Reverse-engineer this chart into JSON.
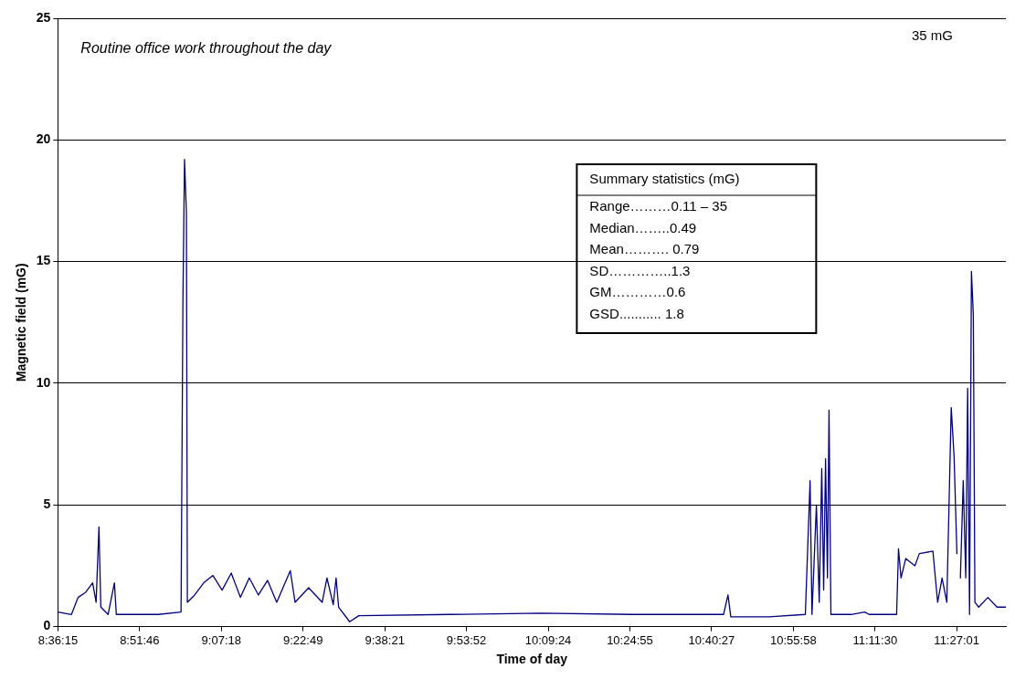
{
  "chart_data": {
    "type": "line",
    "xlabel": "Time of day",
    "ylabel": "Magnetic field (mG)",
    "annotations": [
      "Routine office work throughout the day",
      "35 mG",
      "Summary statistics (mG)",
      "Range………0.11 – 35",
      "Median……..0.49",
      "Mean………. 0.79",
      "SD…………..1.3",
      "GM…………0.6",
      "GSD........... 1.8"
    ],
    "xlim": [
      8.604,
      11.606
    ],
    "ylim": [
      0,
      25
    ],
    "yticks": [
      0,
      5,
      10,
      15,
      20,
      25
    ],
    "xticks": [
      {
        "value": 8.604167,
        "label": "8:36:15"
      },
      {
        "value": 8.862778,
        "label": "8:51:46"
      },
      {
        "value": 9.121667,
        "label": "9:07:18"
      },
      {
        "value": 9.380278,
        "label": "9:22:49"
      },
      {
        "value": 9.639167,
        "label": "9:38:21"
      },
      {
        "value": 9.897778,
        "label": "9:53:52"
      },
      {
        "value": 10.156667,
        "label": "10:09:24"
      },
      {
        "value": 10.415278,
        "label": "10:24:55"
      },
      {
        "value": 10.674167,
        "label": "10:40:27"
      },
      {
        "value": 10.932778,
        "label": "10:55:58"
      },
      {
        "value": 11.191667,
        "label": "11:11:30"
      },
      {
        "value": 11.450278,
        "label": "11:27:01"
      }
    ],
    "grid": "y",
    "legend": false,
    "marker": "none",
    "line_style": "solid",
    "x": [
      8.604,
      8.647,
      8.668,
      8.691,
      8.714,
      8.725,
      8.734,
      8.74,
      8.763,
      8.783,
      8.789,
      8.835,
      8.922,
      8.994,
      9.0,
      9.005,
      9.011,
      9.014,
      9.037,
      9.066,
      9.095,
      9.124,
      9.153,
      9.182,
      9.21,
      9.239,
      9.268,
      9.297,
      9.34,
      9.355,
      9.398,
      9.441,
      9.456,
      9.476,
      9.485,
      9.493,
      9.528,
      9.557,
      9.846,
      10.134,
      10.423,
      10.712,
      10.726,
      10.735,
      10.856,
      10.971,
      10.986,
      10.992,
      11.006,
      11.015,
      11.023,
      11.029,
      11.035,
      11.041,
      11.046,
      11.052,
      11.116,
      11.159,
      11.173,
      11.26,
      11.266,
      11.274,
      11.289,
      11.318,
      11.332,
      11.375,
      11.39,
      11.404,
      11.419,
      11.433,
      11.442,
      11.451,
      11.456,
      11.462,
      11.471,
      11.479,
      11.485,
      11.491,
      11.497,
      11.503,
      11.508,
      11.52,
      11.549,
      11.578,
      11.606
    ],
    "series": [
      {
        "color": "#000080",
        "values": [
          0.6,
          0.5,
          1.2,
          1.4,
          1.8,
          1.0,
          4.1,
          0.8,
          0.5,
          1.8,
          0.5,
          0.5,
          0.5,
          0.6,
          13.5,
          19.2,
          17,
          1.0,
          1.3,
          1.8,
          2.1,
          1.5,
          2.2,
          1.2,
          2.0,
          1.3,
          1.9,
          1.0,
          2.3,
          1.0,
          1.6,
          1.0,
          2.0,
          0.9,
          2.0,
          0.8,
          0.2,
          0.45,
          0.5,
          0.55,
          0.5,
          0.5,
          1.3,
          0.4,
          0.4,
          0.5,
          6.0,
          0.5,
          5.0,
          1.0,
          6.5,
          1.5,
          6.9,
          2.0,
          8.9,
          0.5,
          0.5,
          0.6,
          0.5,
          0.5,
          3.2,
          2.0,
          2.8,
          2.5,
          3.0,
          3.1,
          1.0,
          2.0,
          1.0,
          9.0,
          7.0,
          3.0,
          null,
          2.0,
          6.0,
          2.0,
          9.8,
          0.5,
          14.6,
          12.8,
          1.0,
          0.8,
          1.2,
          0.8,
          0.8
        ]
      }
    ]
  }
}
